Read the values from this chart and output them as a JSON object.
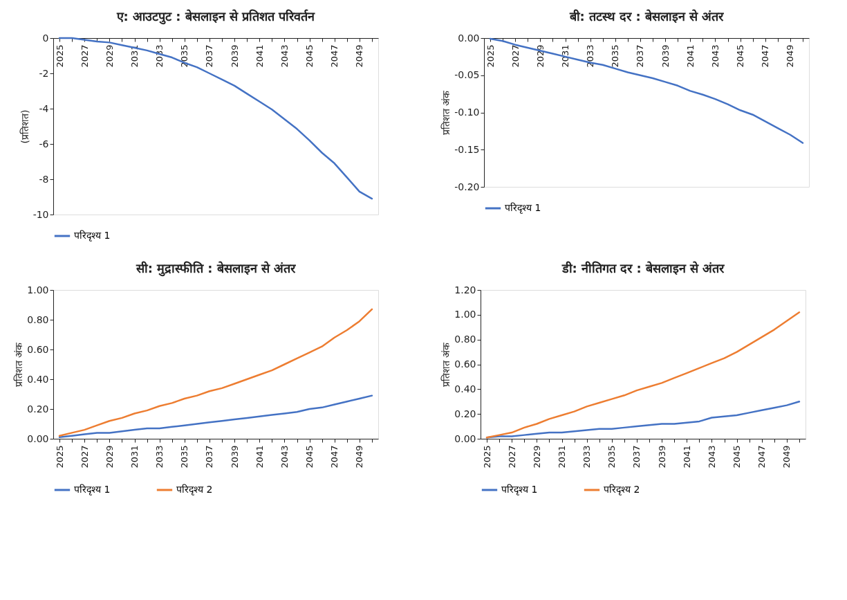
{
  "chart_data": [
    {
      "type": "line",
      "title": "ए: आउटपुट : बेसलाइन से प्रतिशत परिवर्तन",
      "ylabel": "(प्रतिशत)",
      "legend": "bottom",
      "categories": [
        "2025",
        null,
        "2027",
        null,
        "2029",
        null,
        "2031",
        null,
        "2033",
        null,
        "2035",
        null,
        "2037",
        null,
        "2039",
        null,
        "2041",
        null,
        "2043",
        null,
        "2045",
        null,
        "2047",
        null,
        "2049",
        null
      ],
      "ylim": [
        -10,
        0
      ],
      "yticks": [
        -10,
        -8,
        -6,
        -4,
        -2,
        0
      ],
      "series": [
        {
          "name": "परिदृश्य 1",
          "color": "#4472c4",
          "values": [
            0,
            0,
            -0.1,
            -0.2,
            -0.25,
            -0.4,
            -0.55,
            -0.7,
            -0.9,
            -1.1,
            -1.4,
            -1.65,
            -2.0,
            -2.35,
            -2.7,
            -3.15,
            -3.6,
            -4.05,
            -4.6,
            -5.15,
            -5.8,
            -6.5,
            -7.1,
            -7.9,
            -8.7,
            -9.1
          ]
        }
      ]
    },
    {
      "type": "line",
      "title": "बी: तटस्थ दर : बेसलाइन से अंतर",
      "ylabel": "प्रतिशत अंक",
      "legend": "bottom",
      "categories": [
        "2025",
        null,
        "2027",
        null,
        "2029",
        null,
        "2031",
        null,
        "2033",
        null,
        "2035",
        null,
        "2037",
        null,
        "2039",
        null,
        "2041",
        null,
        "2043",
        null,
        "2045",
        null,
        "2047",
        null,
        "2049",
        null
      ],
      "ylim": [
        -0.2,
        0
      ],
      "yticks": [
        {
          "value": -0.2,
          "label": "-0.20"
        },
        {
          "value": -0.15,
          "label": "-0.15"
        },
        {
          "value": -0.1,
          "label": "-0.10"
        },
        {
          "value": -0.05,
          "label": "-0.05"
        },
        {
          "value": 0,
          "label": "0.00"
        }
      ],
      "series": [
        {
          "name": "परिदृश्य 1",
          "color": "#4472c4",
          "values": [
            -0.001,
            -0.004,
            -0.009,
            -0.013,
            -0.017,
            -0.021,
            -0.025,
            -0.029,
            -0.033,
            -0.036,
            -0.041,
            -0.046,
            -0.05,
            -0.054,
            -0.059,
            -0.064,
            -0.071,
            -0.076,
            -0.082,
            -0.089,
            -0.097,
            -0.103,
            -0.112,
            -0.121,
            -0.13,
            -0.141
          ]
        }
      ]
    },
    {
      "type": "line",
      "title": "सी: मुद्रास्फीति : बेसलाइन से अंतर",
      "ylabel": "प्रतिशत अंक",
      "legend": "bottom",
      "categories": [
        "2025",
        null,
        "2027",
        null,
        "2029",
        null,
        "2031",
        null,
        "2033",
        null,
        "2035",
        null,
        "2037",
        null,
        "2039",
        null,
        "2041",
        null,
        "2043",
        null,
        "2045",
        null,
        "2047",
        null,
        "2049",
        null
      ],
      "ylim": [
        0,
        1
      ],
      "yticks": [
        {
          "value": 0,
          "label": "0.00"
        },
        {
          "value": 0.2,
          "label": "0.20"
        },
        {
          "value": 0.4,
          "label": "0.40"
        },
        {
          "value": 0.6,
          "label": "0.60"
        },
        {
          "value": 0.8,
          "label": "0.80"
        },
        {
          "value": 1,
          "label": "1.00"
        }
      ],
      "series": [
        {
          "name": "परिदृश्य 1",
          "color": "#4472c4",
          "values": [
            0.01,
            0.02,
            0.03,
            0.04,
            0.04,
            0.05,
            0.06,
            0.07,
            0.07,
            0.08,
            0.09,
            0.1,
            0.11,
            0.12,
            0.13,
            0.14,
            0.15,
            0.16,
            0.17,
            0.18,
            0.2,
            0.21,
            0.23,
            0.25,
            0.27,
            0.29
          ]
        },
        {
          "name": "परिदृश्य 2",
          "color": "#ed7d31",
          "values": [
            0.02,
            0.04,
            0.06,
            0.09,
            0.12,
            0.14,
            0.17,
            0.19,
            0.22,
            0.24,
            0.27,
            0.29,
            0.32,
            0.34,
            0.37,
            0.4,
            0.43,
            0.46,
            0.5,
            0.54,
            0.58,
            0.62,
            0.68,
            0.73,
            0.79,
            0.87
          ]
        }
      ]
    },
    {
      "type": "line",
      "title": "डी: नीतिगत दर : बेसलाइन से अंतर",
      "ylabel": "प्रतिशत अंक",
      "legend": "bottom",
      "categories": [
        "2025",
        null,
        "2027",
        null,
        "2029",
        null,
        "2031",
        null,
        "2033",
        null,
        "2035",
        null,
        "2037",
        null,
        "2039",
        null,
        "2041",
        null,
        "2043",
        null,
        "2045",
        null,
        "2047",
        null,
        "2049",
        null
      ],
      "ylim": [
        0,
        1.2
      ],
      "yticks": [
        {
          "value": 0,
          "label": "0.00"
        },
        {
          "value": 0.2,
          "label": "0.20"
        },
        {
          "value": 0.4,
          "label": "0.40"
        },
        {
          "value": 0.6,
          "label": "0.60"
        },
        {
          "value": 0.8,
          "label": "0.80"
        },
        {
          "value": 1,
          "label": "1.00"
        },
        {
          "value": 1.2,
          "label": "1.20"
        }
      ],
      "series": [
        {
          "name": "परिदृश्य 1",
          "color": "#4472c4",
          "values": [
            0.01,
            0.02,
            0.02,
            0.03,
            0.04,
            0.05,
            0.05,
            0.06,
            0.07,
            0.08,
            0.08,
            0.09,
            0.1,
            0.11,
            0.12,
            0.12,
            0.13,
            0.14,
            0.17,
            0.18,
            0.19,
            0.21,
            0.23,
            0.25,
            0.27,
            0.3
          ]
        },
        {
          "name": "परिदृश्य 2",
          "color": "#ed7d31",
          "values": [
            0.01,
            0.03,
            0.05,
            0.09,
            0.12,
            0.16,
            0.19,
            0.22,
            0.26,
            0.29,
            0.32,
            0.35,
            0.39,
            0.42,
            0.45,
            0.49,
            0.53,
            0.57,
            0.61,
            0.65,
            0.7,
            0.76,
            0.82,
            0.88,
            0.95,
            1.02
          ]
        }
      ]
    }
  ]
}
